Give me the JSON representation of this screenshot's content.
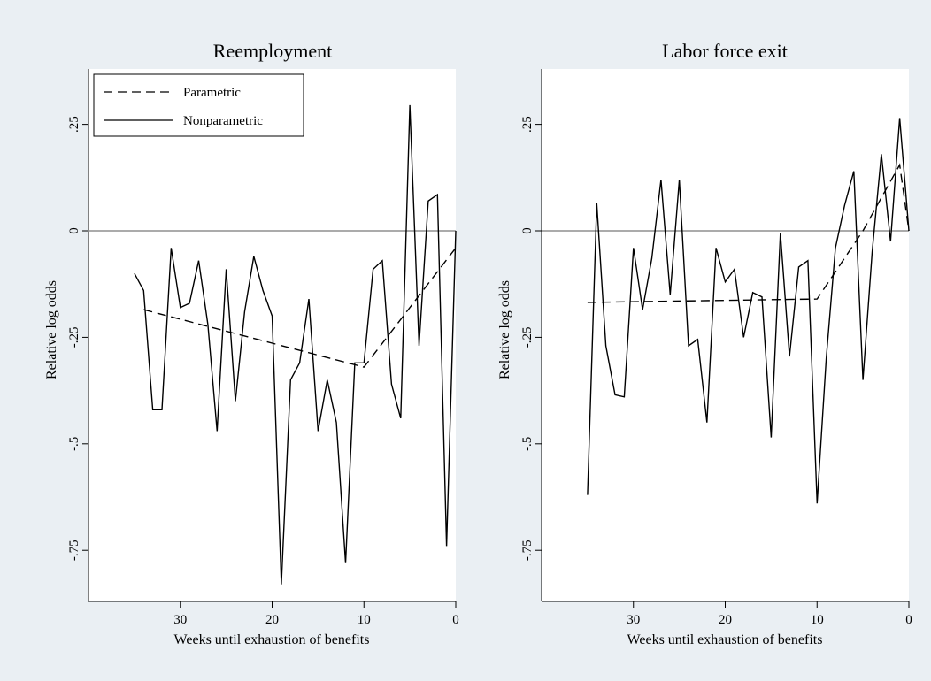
{
  "chart_data": [
    {
      "type": "line",
      "title": "Reemployment",
      "xlabel": "Weeks until exhaustion of benefits",
      "ylabel": "Relative log odds",
      "x_reversed": true,
      "xlim": [
        0,
        40
      ],
      "ylim": [
        -0.87,
        0.38
      ],
      "xticks": [
        30,
        20,
        10,
        0
      ],
      "xtick_labels": [
        "30",
        "20",
        "10",
        "0"
      ],
      "yticks": [
        0.25,
        0,
        -0.25,
        -0.5,
        -0.75
      ],
      "ytick_labels": [
        ".25",
        "0",
        "-.25",
        "-.5",
        "-.75"
      ],
      "reference_line": 0,
      "grid": false,
      "legend_position": "top-left",
      "series": [
        {
          "name": "Parametric",
          "style": "dashed",
          "x": [
            34,
            10,
            0
          ],
          "y": [
            -0.185,
            -0.32,
            -0.04
          ]
        },
        {
          "name": "Nonparametric",
          "style": "solid",
          "x": [
            35,
            34,
            33,
            32,
            31,
            30,
            29,
            28,
            27,
            26,
            25,
            24,
            23,
            22,
            21,
            20,
            19,
            18,
            17,
            16,
            15,
            14,
            13,
            12,
            11,
            10,
            9,
            8,
            7,
            6,
            5,
            4,
            3,
            2,
            1,
            0
          ],
          "y": [
            -0.1,
            -0.14,
            -0.42,
            -0.42,
            -0.04,
            -0.18,
            -0.17,
            -0.07,
            -0.22,
            -0.47,
            -0.09,
            -0.4,
            -0.19,
            -0.06,
            -0.14,
            -0.2,
            -0.83,
            -0.35,
            -0.31,
            -0.16,
            -0.47,
            -0.35,
            -0.45,
            -0.78,
            -0.31,
            -0.31,
            -0.09,
            -0.07,
            -0.36,
            -0.44,
            0.295,
            -0.27,
            0.07,
            0.085,
            -0.74,
            0.0
          ]
        }
      ]
    },
    {
      "type": "line",
      "title": "Labor force exit",
      "xlabel": "Weeks until exhaustion of benefits",
      "ylabel": "Relative log odds",
      "x_reversed": true,
      "xlim": [
        0,
        40
      ],
      "ylim": [
        -0.87,
        0.38
      ],
      "xticks": [
        30,
        20,
        10,
        0
      ],
      "xtick_labels": [
        "30",
        "20",
        "10",
        "0"
      ],
      "yticks": [
        0.25,
        0,
        -0.25,
        -0.5,
        -0.75
      ],
      "ytick_labels": [
        ".25",
        "0",
        "-.25",
        "-.5",
        "-.75"
      ],
      "reference_line": 0,
      "grid": false,
      "series": [
        {
          "name": "Parametric",
          "style": "dashed",
          "x": [
            35,
            10,
            5,
            1,
            0
          ],
          "y": [
            -0.168,
            -0.16,
            0.0,
            0.155,
            0.0
          ]
        },
        {
          "name": "Nonparametric",
          "style": "solid",
          "x": [
            35,
            34,
            33,
            32,
            31,
            30,
            29,
            28,
            27,
            26,
            25,
            24,
            23,
            22,
            21,
            20,
            19,
            18,
            17,
            16,
            15,
            14,
            13,
            12,
            11,
            10,
            9,
            8,
            7,
            6,
            5,
            4,
            3,
            2,
            1,
            0
          ],
          "y": [
            -0.62,
            0.065,
            -0.27,
            -0.385,
            -0.39,
            -0.04,
            -0.185,
            -0.065,
            0.12,
            -0.15,
            0.12,
            -0.27,
            -0.255,
            -0.45,
            -0.04,
            -0.12,
            -0.09,
            -0.25,
            -0.145,
            -0.155,
            -0.485,
            -0.005,
            -0.295,
            -0.085,
            -0.07,
            -0.64,
            -0.3,
            -0.04,
            0.06,
            0.14,
            -0.35,
            -0.05,
            0.18,
            -0.025,
            0.265,
            0.0
          ]
        }
      ]
    }
  ]
}
